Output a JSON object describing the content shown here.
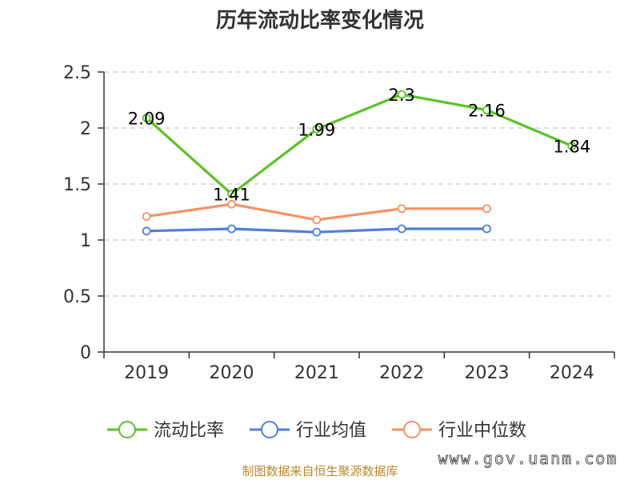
{
  "chart_data": {
    "type": "line",
    "title": "历年流动比率变化情况",
    "categories": [
      "2019",
      "2020",
      "2021",
      "2022",
      "2023",
      "2024"
    ],
    "ylim": [
      0,
      2.5
    ],
    "yticks": [
      "0",
      "0.5",
      "1",
      "1.5",
      "2",
      "2.5"
    ],
    "grid": true,
    "legend_position": "bottom",
    "series": [
      {
        "name": "流动比率",
        "color": "#5cc127",
        "values": [
          2.09,
          1.41,
          1.99,
          2.3,
          2.16,
          1.84
        ],
        "labels": [
          "2.09",
          "1.41",
          "1.99",
          "2.3",
          "2.16",
          "1.84"
        ]
      },
      {
        "name": "行业均值",
        "color": "#4f7fdc",
        "values": [
          1.08,
          1.1,
          1.07,
          1.1,
          1.1,
          null
        ]
      },
      {
        "name": "行业中位数",
        "color": "#f49264",
        "values": [
          1.21,
          1.32,
          1.18,
          1.28,
          1.28,
          null
        ]
      }
    ]
  },
  "footer": {
    "source": "制图数据来自恒生聚源数据库",
    "watermark": "www.gov.uanm.com"
  }
}
